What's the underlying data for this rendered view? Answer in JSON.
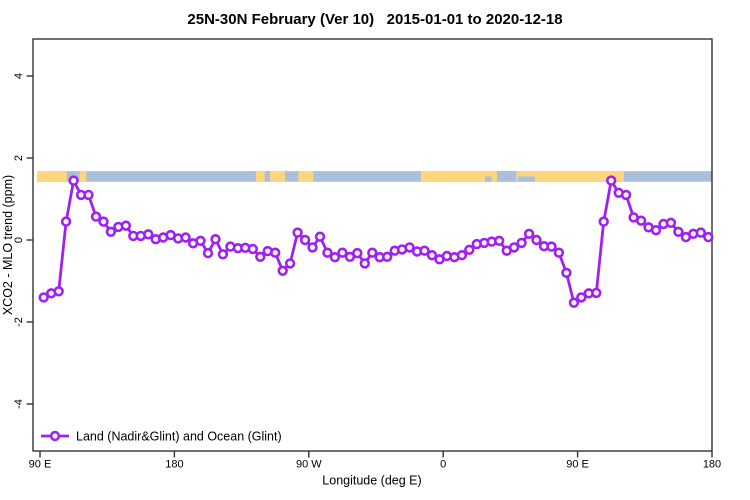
{
  "colors": {
    "line": "#A020F0",
    "marker_fill": "#FFFFFF",
    "land": "#FFD67E",
    "ocean": "#A9BFDB",
    "axis": "#333333",
    "text": "#000000"
  },
  "legend": {
    "label": "Land (Nadir&Glint) and Ocean (Glint)"
  },
  "chart_data": {
    "type": "line",
    "title": "25N-30N February (Ver 10)   2015-01-01 to 2020-12-18",
    "xlabel": "Longitude (deg E)",
    "ylabel": "XCO2 - MLO trend (ppm)",
    "grid": false,
    "legend_position": "bottom-left",
    "x_axis": {
      "domain_deg": [
        90,
        540
      ],
      "ticks": [
        {
          "deg": 90,
          "label": "90 E"
        },
        {
          "deg": 180,
          "label": "180"
        },
        {
          "deg": 270,
          "label": "90 W"
        },
        {
          "deg": 360,
          "label": "0"
        },
        {
          "deg": 450,
          "label": "90 E"
        },
        {
          "deg": 540,
          "label": "180"
        }
      ]
    },
    "y_axis": {
      "lim": [
        -5,
        5
      ],
      "ticks": [
        {
          "v": -4,
          "label": "-4"
        },
        {
          "v": -2,
          "label": "-2"
        },
        {
          "v": 0,
          "label": "0"
        },
        {
          "v": 2,
          "label": "2"
        },
        {
          "v": 4,
          "label": "4"
        }
      ]
    },
    "series": {
      "name": "Land (Nadir&Glint) and Ocean (Glint)",
      "x_start_deg": 92.5,
      "x_step_deg": 5,
      "values": [
        -1.4,
        -1.3,
        -1.25,
        0.45,
        1.45,
        1.1,
        1.1,
        0.57,
        0.45,
        0.2,
        0.32,
        0.35,
        0.1,
        0.1,
        0.14,
        0.02,
        0.06,
        0.12,
        0.04,
        0.06,
        -0.08,
        -0.02,
        -0.32,
        0.02,
        -0.35,
        -0.16,
        -0.2,
        -0.19,
        -0.22,
        -0.41,
        -0.27,
        -0.31,
        -0.75,
        -0.57,
        0.18,
        0,
        -0.18,
        0.08,
        -0.31,
        -0.42,
        -0.31,
        -0.41,
        -0.32,
        -0.57,
        -0.31,
        -0.42,
        -0.41,
        -0.26,
        -0.23,
        -0.18,
        -0.28,
        -0.26,
        -0.37,
        -0.47,
        -0.39,
        -0.42,
        -0.37,
        -0.24,
        -0.1,
        -0.07,
        -0.04,
        -0.02,
        -0.26,
        -0.18,
        -0.07,
        0.15,
        0,
        -0.15,
        -0.16,
        -0.31,
        -0.8,
        -1.53,
        -1.4,
        -1.3,
        -1.29,
        0.45,
        1.45,
        1.15,
        1.1,
        0.55,
        0.47,
        0.31,
        0.24,
        0.39,
        0.42,
        0.2,
        0.07,
        0.15,
        0.18,
        0.07
      ]
    },
    "map_band": {
      "x_range_deg": [
        88,
        540
      ],
      "y_range_ppm": [
        1.42,
        1.68
      ],
      "land_segments_deg": [
        [
          88,
          108
        ],
        [
          116.5,
          121
        ],
        [
          234.5,
          240.5
        ],
        [
          244,
          254
        ],
        [
          263,
          273
        ],
        [
          345,
          481
        ]
      ],
      "ocean_patches_deg": [
        {
          "range": [
            388,
            392.5
          ],
          "part": "bottom"
        },
        {
          "range": [
            396,
            409
          ],
          "part": "full"
        },
        {
          "range": [
            410,
            421.5
          ],
          "part": "bottom"
        }
      ]
    }
  }
}
